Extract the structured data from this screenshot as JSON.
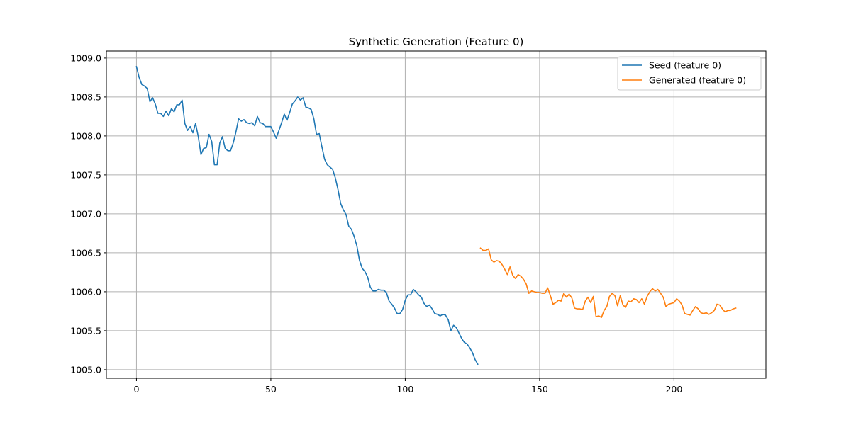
{
  "chart_data": {
    "type": "line",
    "title": "Synthetic Generation (Feature 0)",
    "xlabel": "",
    "ylabel": "",
    "xlim": [
      -11.2,
      234.2
    ],
    "ylim": [
      1004.89,
      1009.09
    ],
    "xticks": [
      0,
      50,
      100,
      150,
      200
    ],
    "yticks": [
      1005.0,
      1005.5,
      1006.0,
      1006.5,
      1007.0,
      1007.5,
      1008.0,
      1008.5,
      1009.0
    ],
    "xtick_labels": [
      "0",
      "50",
      "100",
      "150",
      "200"
    ],
    "ytick_labels": [
      "1005.0",
      "1005.5",
      "1006.0",
      "1006.5",
      "1007.0",
      "1007.5",
      "1008.0",
      "1008.5",
      "1009.0"
    ],
    "grid": true,
    "legend_position": "top-right",
    "series": [
      {
        "name": "Seed (feature 0)",
        "color": "#1f77b4",
        "x_start": 0,
        "values": [
          1008.89,
          1008.75,
          1008.66,
          1008.64,
          1008.61,
          1008.44,
          1008.49,
          1008.41,
          1008.29,
          1008.29,
          1008.25,
          1008.32,
          1008.26,
          1008.35,
          1008.31,
          1008.4,
          1008.4,
          1008.46,
          1008.16,
          1008.07,
          1008.12,
          1008.04,
          1008.16,
          1007.99,
          1007.76,
          1007.84,
          1007.85,
          1008.02,
          1007.93,
          1007.63,
          1007.63,
          1007.91,
          1007.99,
          1007.84,
          1007.81,
          1007.81,
          1007.91,
          1008.05,
          1008.22,
          1008.19,
          1008.21,
          1008.17,
          1008.16,
          1008.17,
          1008.13,
          1008.25,
          1008.17,
          1008.16,
          1008.12,
          1008.12,
          1008.12,
          1008.05,
          1007.97,
          1008.07,
          1008.17,
          1008.28,
          1008.2,
          1008.3,
          1008.41,
          1008.45,
          1008.5,
          1008.46,
          1008.49,
          1008.37,
          1008.36,
          1008.34,
          1008.22,
          1008.02,
          1008.03,
          1007.86,
          1007.7,
          1007.63,
          1007.6,
          1007.57,
          1007.46,
          1007.31,
          1007.13,
          1007.05,
          1006.99,
          1006.84,
          1006.8,
          1006.71,
          1006.59,
          1006.4,
          1006.3,
          1006.26,
          1006.19,
          1006.06,
          1006.01,
          1006.01,
          1006.03,
          1006.02,
          1006.02,
          1005.99,
          1005.88,
          1005.84,
          1005.79,
          1005.72,
          1005.72,
          1005.77,
          1005.89,
          1005.96,
          1005.96,
          1006.03,
          1006.0,
          1005.96,
          1005.93,
          1005.85,
          1005.81,
          1005.83,
          1005.78,
          1005.72,
          1005.71,
          1005.69,
          1005.71,
          1005.7,
          1005.64,
          1005.5,
          1005.57,
          1005.54,
          1005.47,
          1005.4,
          1005.35,
          1005.33,
          1005.28,
          1005.22,
          1005.13,
          1005.07
        ]
      },
      {
        "name": "Generated (feature 0)",
        "color": "#ff7f0e",
        "x_start": 128,
        "values": [
          1006.56,
          1006.53,
          1006.53,
          1006.55,
          1006.41,
          1006.38,
          1006.4,
          1006.39,
          1006.35,
          1006.29,
          1006.22,
          1006.32,
          1006.21,
          1006.17,
          1006.22,
          1006.2,
          1006.16,
          1006.1,
          1005.98,
          1006.01,
          1006.0,
          1005.99,
          1005.99,
          1005.98,
          1005.98,
          1006.05,
          1005.95,
          1005.84,
          1005.86,
          1005.89,
          1005.88,
          1005.98,
          1005.93,
          1005.97,
          1005.92,
          1005.79,
          1005.78,
          1005.78,
          1005.77,
          1005.88,
          1005.93,
          1005.86,
          1005.94,
          1005.68,
          1005.69,
          1005.67,
          1005.76,
          1005.81,
          1005.94,
          1005.98,
          1005.95,
          1005.82,
          1005.95,
          1005.83,
          1005.8,
          1005.88,
          1005.87,
          1005.91,
          1005.9,
          1005.86,
          1005.91,
          1005.84,
          1005.94,
          1006.0,
          1006.04,
          1006.01,
          1006.03,
          1005.98,
          1005.93,
          1005.81,
          1005.84,
          1005.85,
          1005.86,
          1005.91,
          1005.88,
          1005.83,
          1005.72,
          1005.71,
          1005.7,
          1005.76,
          1005.81,
          1005.78,
          1005.73,
          1005.72,
          1005.73,
          1005.71,
          1005.73,
          1005.76,
          1005.84,
          1005.83,
          1005.78,
          1005.74,
          1005.76,
          1005.76,
          1005.78,
          1005.79
        ]
      }
    ]
  }
}
